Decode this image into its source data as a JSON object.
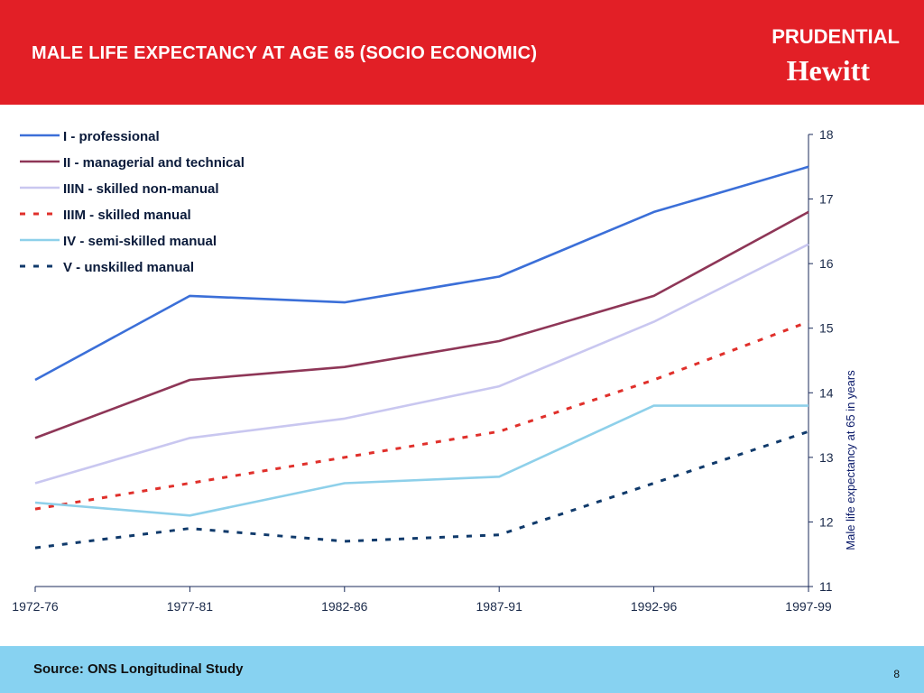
{
  "header": {
    "title": "MALE LIFE EXPECTANCY AT AGE 65 (SOCIO ECONOMIC)",
    "logo_line1": "PRUDENTIAL",
    "logo_line2": "Hewitt",
    "background_color": "#e21f26"
  },
  "footer": {
    "source": "Source: ONS Longitudinal Study",
    "page_number": "8",
    "background_color": "#87d2f1"
  },
  "chart_data": {
    "type": "line",
    "categories": [
      "1972-76",
      "1977-81",
      "1982-86",
      "1987-91",
      "1992-96",
      "1997-99"
    ],
    "ylabel": "Male life expectancy at 65 in years",
    "ylim": [
      11,
      18
    ],
    "yticks": [
      11,
      12,
      13,
      14,
      15,
      16,
      17,
      18
    ],
    "y_axis_side": "right",
    "legend_position": "top-left",
    "grid": false,
    "series": [
      {
        "name": "I - professional",
        "values": [
          14.2,
          15.5,
          15.4,
          15.8,
          16.8,
          17.5
        ],
        "color": "#3b6fd8",
        "dashed": false
      },
      {
        "name": "II - managerial and technical",
        "values": [
          13.3,
          14.2,
          14.4,
          14.8,
          15.5,
          16.8
        ],
        "color": "#8e3657",
        "dashed": false
      },
      {
        "name": "IIIN - skilled non-manual",
        "values": [
          12.6,
          13.3,
          13.6,
          14.1,
          15.1,
          16.3
        ],
        "color": "#c9c7f0",
        "dashed": false
      },
      {
        "name": "IIIM - skilled manual",
        "values": [
          12.2,
          12.6,
          13.0,
          13.4,
          14.2,
          15.1
        ],
        "color": "#e0302b",
        "dashed": true
      },
      {
        "name": "IV - semi-skilled manual",
        "values": [
          12.3,
          12.1,
          12.6,
          12.7,
          13.8,
          13.8
        ],
        "color": "#8ed0ea",
        "dashed": false
      },
      {
        "name": "V - unskilled manual",
        "values": [
          11.6,
          11.9,
          11.7,
          11.8,
          12.6,
          13.4
        ],
        "color": "#103a6b",
        "dashed": true
      }
    ]
  }
}
